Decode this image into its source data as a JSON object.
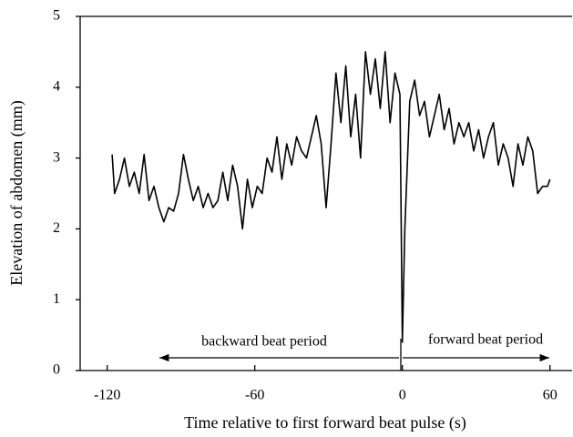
{
  "chart_data": {
    "type": "line",
    "x_label": "Time relative to first forward beat pulse (s)",
    "y_label": "Elevation of abdomen (mm)",
    "x": [
      -118,
      -117,
      -115,
      -113,
      -111,
      -109,
      -107,
      -105,
      -103,
      -101,
      -99,
      -97,
      -95,
      -93,
      -91,
      -89,
      -87,
      -85,
      -83,
      -81,
      -79,
      -77,
      -75,
      -73,
      -71,
      -69,
      -67,
      -65,
      -63,
      -61,
      -59,
      -57,
      -55,
      -53,
      -51,
      -49,
      -47,
      -45,
      -43,
      -41,
      -39,
      -37,
      -35,
      -33,
      -31,
      -29,
      -27,
      -25,
      -23,
      -21,
      -19,
      -17,
      -15,
      -13,
      -11,
      -9,
      -7,
      -5,
      -3,
      -1,
      0,
      1,
      3,
      5,
      7,
      9,
      11,
      13,
      15,
      17,
      19,
      21,
      23,
      25,
      27,
      29,
      31,
      33,
      35,
      37,
      39,
      41,
      43,
      45,
      47,
      49,
      51,
      53,
      55,
      57,
      59,
      60
    ],
    "values": [
      3.05,
      2.5,
      2.7,
      3.0,
      2.6,
      2.8,
      2.5,
      3.05,
      2.4,
      2.6,
      2.3,
      2.1,
      2.3,
      2.25,
      2.5,
      3.05,
      2.7,
      2.4,
      2.6,
      2.3,
      2.5,
      2.3,
      2.4,
      2.8,
      2.4,
      2.9,
      2.6,
      2.0,
      2.7,
      2.3,
      2.6,
      2.5,
      3.0,
      2.8,
      3.3,
      2.7,
      3.2,
      2.9,
      3.3,
      3.1,
      3.0,
      3.3,
      3.6,
      3.2,
      2.3,
      3.2,
      4.2,
      3.5,
      4.3,
      3.3,
      3.9,
      3.0,
      4.5,
      3.9,
      4.4,
      3.7,
      4.5,
      3.5,
      4.2,
      3.9,
      0.4,
      2.0,
      3.8,
      4.1,
      3.6,
      3.8,
      3.3,
      3.6,
      3.9,
      3.4,
      3.7,
      3.2,
      3.5,
      3.3,
      3.5,
      3.1,
      3.4,
      3.0,
      3.3,
      3.5,
      2.9,
      3.2,
      3.0,
      2.6,
      3.2,
      2.9,
      3.3,
      3.1,
      2.5,
      2.6,
      2.6,
      2.7
    ],
    "color": "#000000",
    "xlim": [
      -131,
      69
    ],
    "xticks": [
      -120,
      -60,
      0,
      60
    ],
    "ylim": [
      0,
      5
    ],
    "yticks": [
      0,
      1,
      2,
      3,
      4,
      5
    ],
    "annotations": [
      "backward beat period",
      "forward beat period"
    ]
  }
}
